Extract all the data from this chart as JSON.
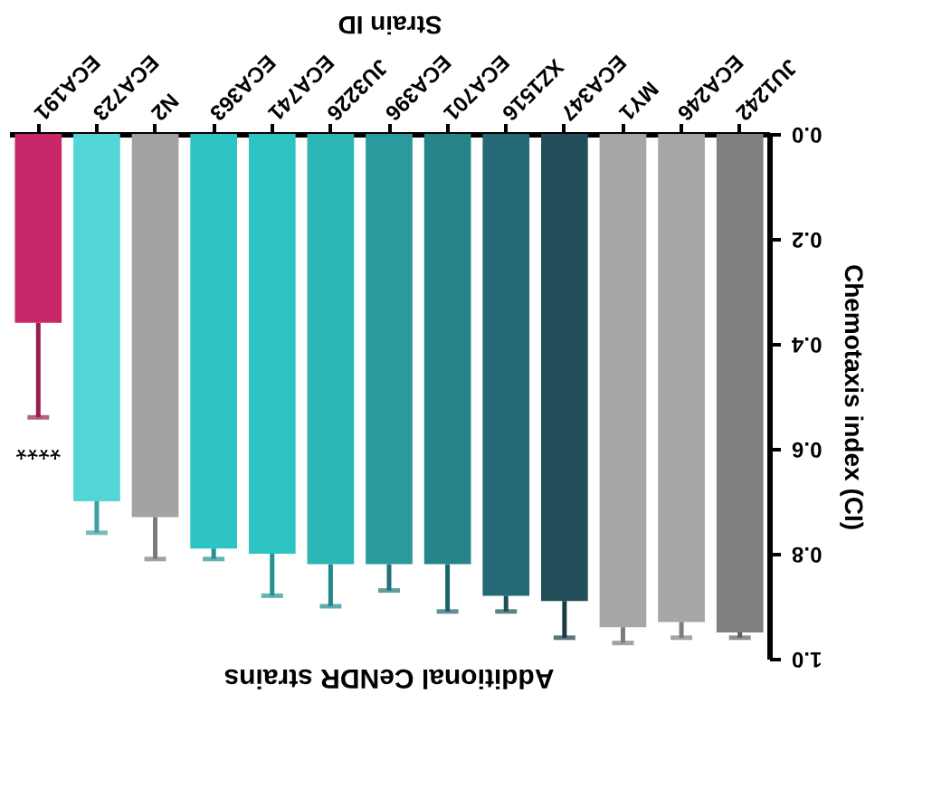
{
  "chart_data": {
    "type": "bar",
    "title": "Additional CeNDR strains",
    "xlabel": "Strain ID",
    "ylabel": "Chemotaxis index (CI)",
    "categories": [
      "ECA191",
      "ECA723",
      "N2",
      "ECA363",
      "ECA741",
      "JU3226",
      "ECA396",
      "ECA701",
      "XZ1516",
      "ECA347",
      "MY1",
      "ECA246",
      "JU1242"
    ],
    "values": [
      0.36,
      0.7,
      0.73,
      0.79,
      0.8,
      0.82,
      0.82,
      0.82,
      0.88,
      0.89,
      0.94,
      0.93,
      0.95
    ],
    "errors": [
      0.18,
      0.06,
      0.08,
      0.02,
      0.08,
      0.08,
      0.05,
      0.09,
      0.03,
      0.07,
      0.03,
      0.03,
      0.01
    ],
    "colors": [
      "#c8286a",
      "#52d6d8",
      "#a3a3a6",
      "#2ec4c4",
      "#2ec4c4",
      "#2bb5b5",
      "#2a9a9c",
      "#26858a",
      "#236a76",
      "#234f5b",
      "#a6a6a9",
      "#a6a6a9",
      "#7f7f7f"
    ],
    "ylim": [
      1.0,
      0.0
    ],
    "yticks": [
      {
        "value": 0.0,
        "label": "0.0"
      },
      {
        "value": 0.2,
        "label": "0.2"
      },
      {
        "value": 0.4,
        "label": "0.4"
      },
      {
        "value": 0.6,
        "label": "0.6"
      },
      {
        "value": 0.8,
        "label": "0.8"
      },
      {
        "value": 1.0,
        "label": "1.0"
      }
    ],
    "annotations": [
      "****"
    ],
    "grid": false
  }
}
